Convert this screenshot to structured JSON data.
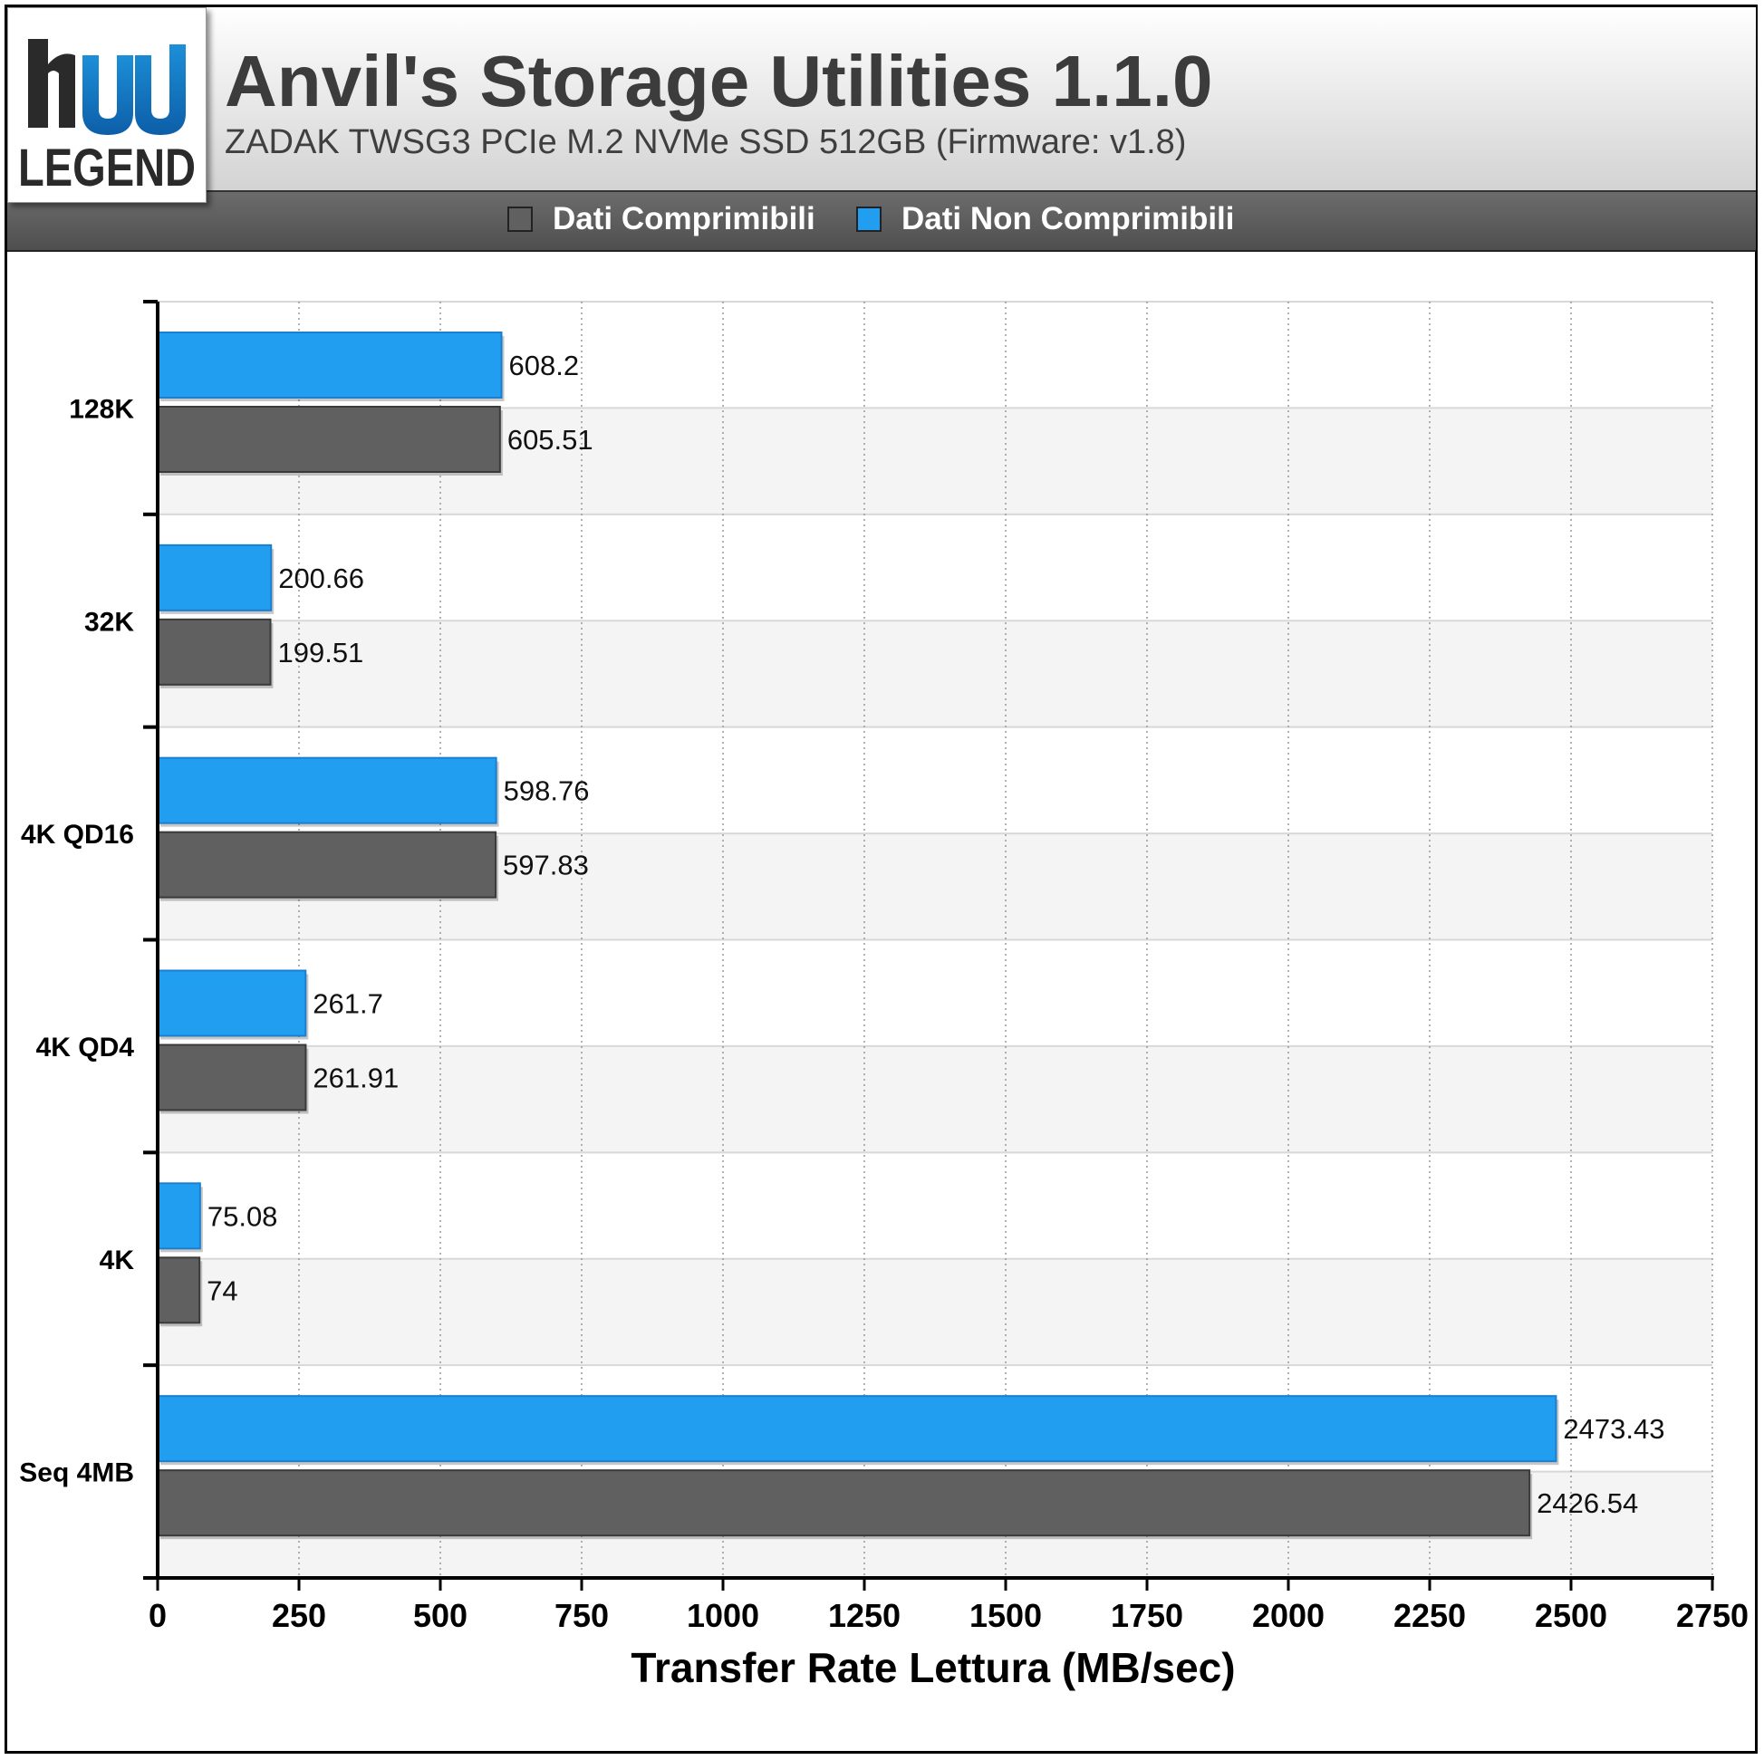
{
  "header": {
    "title": "Anvil's Storage Utilities 1.1.0",
    "subtitle": "ZADAK TWSG3 PCIe M.2 NVMe SSD 512GB (Firmware: v1.8)",
    "logo_text": "LEGEND"
  },
  "legend": {
    "items": [
      {
        "label": "Dati Comprimibili",
        "color": "#606060"
      },
      {
        "label": "Dati Non Comprimibili",
        "color": "#229ef0"
      }
    ]
  },
  "colors": {
    "compressible": "#606060",
    "non_compressible": "#229ef0",
    "band_light": "#f4f4f4",
    "band_white": "#ffffff"
  },
  "chart_data": {
    "type": "bar",
    "orientation": "horizontal",
    "categories": [
      "128K",
      "32K",
      "4K QD16",
      "4K QD4",
      "4K",
      "Seq 4MB"
    ],
    "series": [
      {
        "name": "Dati Non Comprimibili",
        "values": [
          608.2,
          200.66,
          598.76,
          261.7,
          75.08,
          2473.43
        ]
      },
      {
        "name": "Dati Comprimibili",
        "values": [
          605.51,
          199.51,
          597.83,
          261.91,
          74,
          2426.54
        ]
      }
    ],
    "value_labels": [
      [
        "608.2",
        "200.66",
        "598.76",
        "261.7",
        "75.08",
        "2473.43"
      ],
      [
        "605.51",
        "199.51",
        "597.83",
        "261.91",
        "74",
        "2426.54"
      ]
    ],
    "xlabel": "Transfer Rate Lettura (MB/sec)",
    "xlim": [
      0,
      2750
    ],
    "xticks": [
      0,
      250,
      500,
      750,
      1000,
      1250,
      1500,
      1750,
      2000,
      2250,
      2500,
      2750
    ],
    "grid": true,
    "legend_position": "top"
  }
}
